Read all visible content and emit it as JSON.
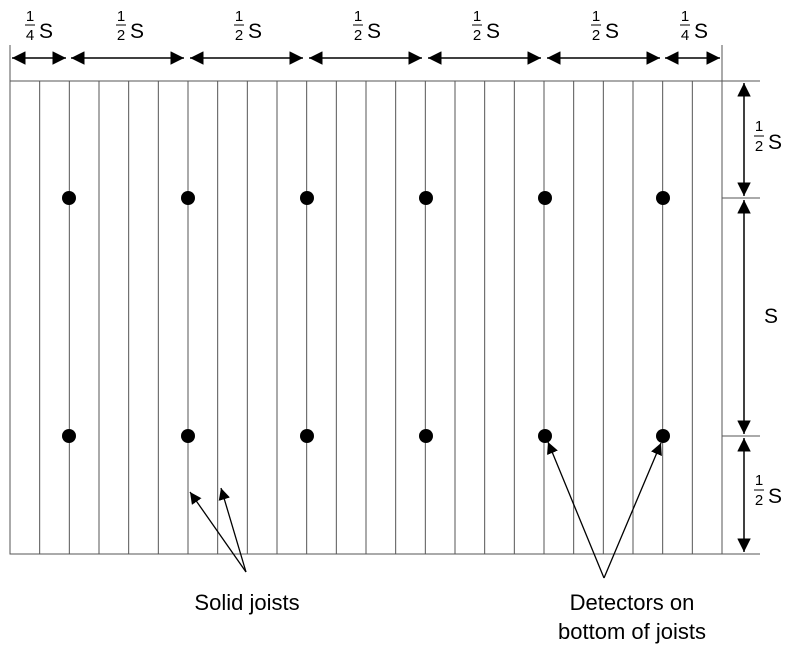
{
  "top_dimensions": [
    {
      "num": "1",
      "den": "4",
      "unit": "S"
    },
    {
      "num": "1",
      "den": "2",
      "unit": "S"
    },
    {
      "num": "1",
      "den": "2",
      "unit": "S"
    },
    {
      "num": "1",
      "den": "2",
      "unit": "S"
    },
    {
      "num": "1",
      "den": "2",
      "unit": "S"
    },
    {
      "num": "1",
      "den": "2",
      "unit": "S"
    },
    {
      "num": "1",
      "den": "4",
      "unit": "S"
    }
  ],
  "right_dimensions": {
    "top": {
      "num": "1",
      "den": "2",
      "unit": "S"
    },
    "middle": {
      "unit": "S"
    },
    "bottom": {
      "num": "1",
      "den": "2",
      "unit": "S"
    }
  },
  "labels": {
    "joists": "Solid joists",
    "detectors_line1": "Detectors on",
    "detectors_line2": "bottom of joists"
  }
}
